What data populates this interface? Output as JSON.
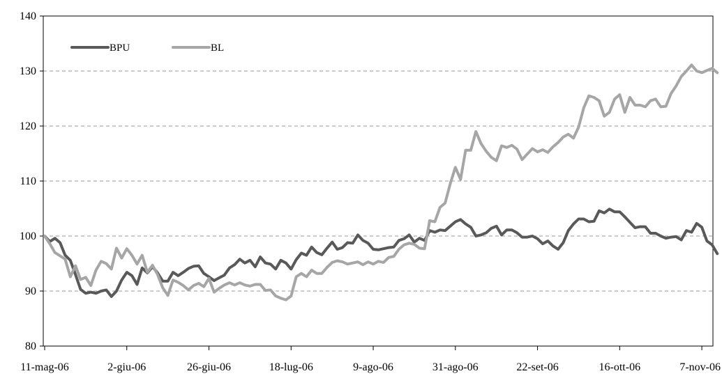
{
  "chart_data": {
    "type": "line",
    "title": "",
    "xlabel": "",
    "ylabel": "",
    "ylim": [
      80,
      140
    ],
    "yticks": [
      80,
      90,
      100,
      110,
      120,
      130,
      140
    ],
    "grid": "horizontal dashed",
    "legend_position": "top-left",
    "x_tick_labels": [
      "11-mag-06",
      "2-giu-06",
      "26-giu-06",
      "18-lug-06",
      "9-ago-06",
      "31-ago-06",
      "22-set-06",
      "16-ott-06",
      "7-nov-06"
    ],
    "x_points_between_ticks": 16,
    "series": [
      {
        "name": "BPU",
        "color": "#595959",
        "values": [
          100,
          99,
          99.6,
          98.8,
          96.5,
          95.6,
          93,
          90.3,
          89.6,
          89.8,
          89.6,
          90,
          90.2,
          89,
          90,
          92,
          93.4,
          92.8,
          91.2,
          94.2,
          93.3,
          94.4,
          93.3,
          91.8,
          91.8,
          93.4,
          92.8,
          93.4,
          94.1,
          94.5,
          94.6,
          93.2,
          92.6,
          91.9,
          92.4,
          92.9,
          94.2,
          94.8,
          95.8,
          95.1,
          95.6,
          94.4,
          96.2,
          95.1,
          94.9,
          94,
          95.6,
          95.1,
          94,
          95.7,
          96.9,
          96.5,
          98,
          97,
          96.6,
          97.8,
          98.9,
          97.6,
          97.9,
          98.8,
          98.7,
          100.2,
          99.2,
          98.7,
          97.6,
          97.5,
          97.7,
          97.9,
          98,
          99.2,
          99.5,
          100.2,
          98.9,
          99.6,
          99.2,
          101,
          100.7,
          101.1,
          101,
          101.8,
          102.6,
          103,
          102.2,
          101.6,
          100,
          100.2,
          100.6,
          101.4,
          101.8,
          100.2,
          101.1,
          101.1,
          100.6,
          99.8,
          99.8,
          100,
          99.5,
          98.6,
          99.1,
          98.2,
          97.6,
          98.8,
          101,
          102.2,
          103.1,
          103.1,
          102.6,
          102.7,
          104.6,
          104.2,
          104.9,
          104.4,
          104.4,
          103.5,
          102.5,
          101.5,
          101.7,
          101.7,
          100.5,
          100.5,
          100,
          99.6,
          99.8,
          99.9,
          99.3,
          101,
          100.7,
          102.3,
          101.6,
          99.1,
          98.4,
          96.8
        ]
      },
      {
        "name": "BL",
        "color": "#a6a6a6",
        "values": [
          100,
          98.6,
          97,
          96.4,
          95.8,
          92.6,
          94.6,
          92.1,
          92.5,
          91,
          93.8,
          95.4,
          95,
          94,
          97.8,
          96,
          97.7,
          96.5,
          94.9,
          96.5,
          93.4,
          94.7,
          93,
          90.6,
          89.2,
          92,
          91.6,
          91,
          90.2,
          91,
          91.4,
          90.8,
          92.3,
          89.8,
          90.5,
          91.1,
          91.5,
          91.1,
          91.5,
          91.1,
          90.9,
          91.2,
          91.2,
          90.1,
          90.2,
          89.1,
          88.7,
          88.4,
          89.1,
          92.6,
          93.2,
          92.6,
          93.8,
          93.2,
          93.2,
          94.3,
          95.2,
          95.5,
          95.3,
          94.9,
          95.1,
          95.3,
          94.8,
          95.3,
          94.9,
          95.4,
          95.2,
          96.1,
          96.3,
          97.6,
          98.4,
          98.7,
          98.5,
          97.8,
          97.7,
          102.8,
          102.6,
          105.2,
          106,
          109.5,
          112.5,
          110.3,
          115.6,
          115.6,
          119,
          116.8,
          115.4,
          114.3,
          113.7,
          116.4,
          116.1,
          116.5,
          115.8,
          113.9,
          114.9,
          115.9,
          115.3,
          115.7,
          115.2,
          116.2,
          117,
          118,
          118.5,
          117.8,
          119.8,
          123.3,
          125.5,
          125.2,
          124.6,
          121.8,
          122.5,
          124.9,
          125.7,
          122.5,
          125.2,
          123.8,
          123.8,
          123.5,
          124.6,
          124.9,
          123.5,
          123.6,
          125.9,
          127.3,
          129,
          130,
          131.1,
          130,
          129.7,
          130.1,
          130.5,
          129.7
        ]
      }
    ]
  }
}
